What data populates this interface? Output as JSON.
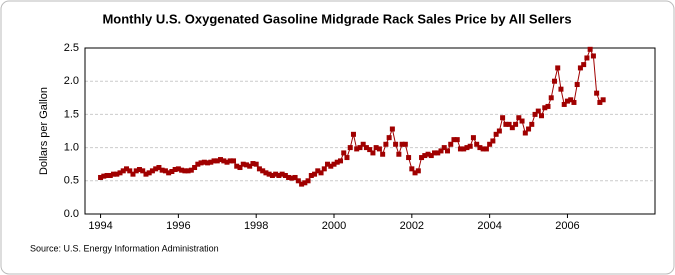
{
  "chart_data": {
    "type": "line",
    "title": "Monthly U.S. Oxygenated Gasoline Midgrade Rack Sales Price by All Sellers",
    "y_label": "Dollars per Gallon",
    "source": "Source: U.S. Energy Information Administration",
    "xlim": [
      1993.6,
      2008.25
    ],
    "xticks": [
      1994,
      1996,
      1998,
      2000,
      2002,
      2004,
      2006
    ],
    "ylim": [
      0,
      2.5
    ],
    "yticks": [
      {
        "value": 0,
        "label": "0.0"
      },
      0.5,
      {
        "value": 1,
        "label": "1.0"
      },
      1.5,
      {
        "value": 2,
        "label": "2.0"
      },
      2.5
    ],
    "grid": true,
    "series": [
      {
        "name": "Midgrade Rack Sales Price",
        "color": "#a00000",
        "x": [
          1994,
          1994.083,
          1994.167,
          1994.25,
          1994.333,
          1994.417,
          1994.5,
          1994.583,
          1994.667,
          1994.75,
          1994.833,
          1994.917,
          1995,
          1995.083,
          1995.167,
          1995.25,
          1995.333,
          1995.417,
          1995.5,
          1995.583,
          1995.667,
          1995.75,
          1995.833,
          1995.917,
          1996,
          1996.083,
          1996.167,
          1996.25,
          1996.333,
          1996.417,
          1996.5,
          1996.583,
          1996.667,
          1996.75,
          1996.833,
          1996.917,
          1997,
          1997.083,
          1997.167,
          1997.25,
          1997.333,
          1997.417,
          1997.5,
          1997.583,
          1997.667,
          1997.75,
          1997.833,
          1997.917,
          1998,
          1998.083,
          1998.167,
          1998.25,
          1998.333,
          1998.417,
          1998.5,
          1998.583,
          1998.667,
          1998.75,
          1998.833,
          1998.917,
          1999,
          1999.083,
          1999.167,
          1999.25,
          1999.333,
          1999.417,
          1999.5,
          1999.583,
          1999.667,
          1999.75,
          1999.833,
          1999.917,
          2000,
          2000.083,
          2000.167,
          2000.25,
          2000.333,
          2000.417,
          2000.5,
          2000.583,
          2000.667,
          2000.75,
          2000.833,
          2000.917,
          2001,
          2001.083,
          2001.167,
          2001.25,
          2001.333,
          2001.417,
          2001.5,
          2001.583,
          2001.667,
          2001.75,
          2001.833,
          2001.917,
          2002,
          2002.083,
          2002.167,
          2002.25,
          2002.333,
          2002.417,
          2002.5,
          2002.583,
          2002.667,
          2002.75,
          2002.833,
          2002.917,
          2003,
          2003.083,
          2003.167,
          2003.25,
          2003.333,
          2003.417,
          2003.5,
          2003.583,
          2003.667,
          2003.75,
          2003.833,
          2003.917,
          2004,
          2004.083,
          2004.167,
          2004.25,
          2004.333,
          2004.417,
          2004.5,
          2004.583,
          2004.667,
          2004.75,
          2004.833,
          2004.917,
          2005,
          2005.083,
          2005.167,
          2005.25,
          2005.333,
          2005.417,
          2005.5,
          2005.583,
          2005.667,
          2005.75,
          2005.833,
          2005.917,
          2006,
          2006.083,
          2006.167,
          2006.25,
          2006.333,
          2006.417,
          2006.5,
          2006.583,
          2006.667,
          2006.75,
          2006.833,
          2006.917
        ],
        "values": [
          0.55,
          0.57,
          0.58,
          0.58,
          0.6,
          0.6,
          0.62,
          0.65,
          0.68,
          0.65,
          0.6,
          0.65,
          0.67,
          0.65,
          0.6,
          0.62,
          0.65,
          0.68,
          0.7,
          0.66,
          0.65,
          0.62,
          0.64,
          0.67,
          0.68,
          0.66,
          0.65,
          0.65,
          0.66,
          0.7,
          0.75,
          0.77,
          0.78,
          0.77,
          0.78,
          0.8,
          0.8,
          0.82,
          0.8,
          0.78,
          0.8,
          0.8,
          0.72,
          0.7,
          0.75,
          0.74,
          0.72,
          0.76,
          0.75,
          0.68,
          0.65,
          0.62,
          0.6,
          0.58,
          0.6,
          0.58,
          0.6,
          0.58,
          0.55,
          0.54,
          0.55,
          0.5,
          0.45,
          0.47,
          0.5,
          0.58,
          0.6,
          0.65,
          0.62,
          0.68,
          0.75,
          0.72,
          0.75,
          0.78,
          0.8,
          0.92,
          0.85,
          1.0,
          1.2,
          0.98,
          1.0,
          1.05,
          1.0,
          0.97,
          0.92,
          1.0,
          0.98,
          0.9,
          1.05,
          1.15,
          1.28,
          1.05,
          0.9,
          1.05,
          1.05,
          0.85,
          0.68,
          0.62,
          0.65,
          0.85,
          0.88,
          0.9,
          0.88,
          0.92,
          0.92,
          0.95,
          1.0,
          0.95,
          1.05,
          1.12,
          1.12,
          0.98,
          0.98,
          1.0,
          1.02,
          1.15,
          1.05,
          1.0,
          0.98,
          0.98,
          1.05,
          1.1,
          1.2,
          1.25,
          1.45,
          1.35,
          1.35,
          1.3,
          1.35,
          1.45,
          1.4,
          1.22,
          1.28,
          1.35,
          1.5,
          1.55,
          1.48,
          1.6,
          1.62,
          1.75,
          2.0,
          2.2,
          1.88,
          1.65,
          1.7,
          1.72,
          1.68,
          1.95,
          2.2,
          2.25,
          2.35,
          2.48,
          2.38,
          1.82,
          1.68,
          1.72
        ]
      }
    ]
  }
}
